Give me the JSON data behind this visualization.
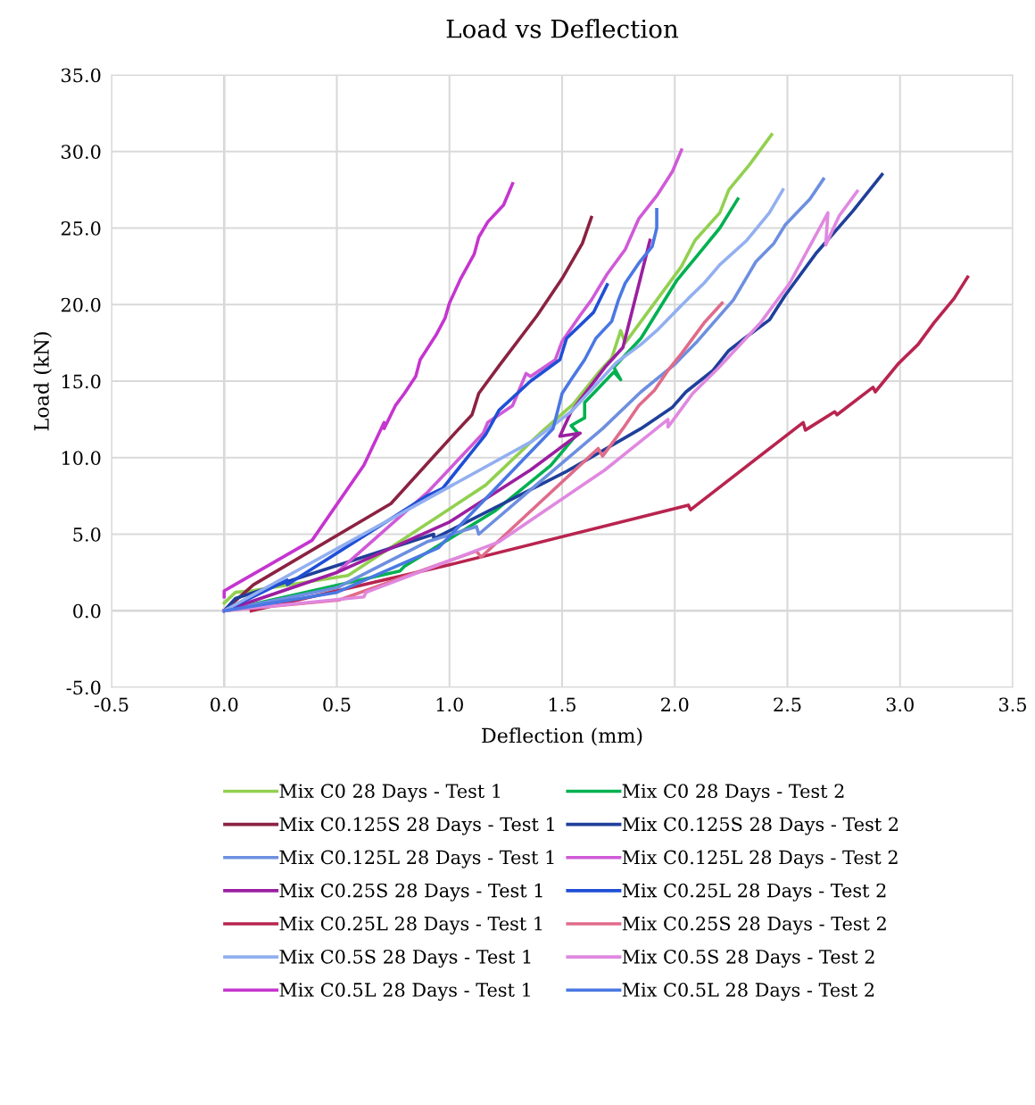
{
  "chart_data": {
    "type": "line",
    "title": "Load vs Deflection",
    "xlabel": "Deflection (mm)",
    "ylabel": "Load (kN)",
    "xlim": [
      -0.5,
      3.5
    ],
    "ylim": [
      -5,
      35
    ],
    "xticks": [
      {
        "value": -0.5,
        "label": "-0.5"
      },
      {
        "value": 0,
        "label": "0.0"
      },
      {
        "value": 0.5,
        "label": "0.5"
      },
      {
        "value": 1,
        "label": "1.0"
      },
      {
        "value": 1.5,
        "label": "1.5"
      },
      {
        "value": 2,
        "label": "2.0"
      },
      {
        "value": 2.5,
        "label": "2.5"
      },
      {
        "value": 3,
        "label": "3.0"
      },
      {
        "value": 3.5,
        "label": "3.5"
      }
    ],
    "yticks": [
      {
        "value": -5,
        "label": "-5.0"
      },
      {
        "value": 0,
        "label": "0.0"
      },
      {
        "value": 5,
        "label": "5.0"
      },
      {
        "value": 10,
        "label": "10.0"
      },
      {
        "value": 15,
        "label": "15.0"
      },
      {
        "value": 20,
        "label": "20.0"
      },
      {
        "value": 25,
        "label": "25.0"
      },
      {
        "value": 30,
        "label": "30.0"
      },
      {
        "value": 35,
        "label": "35.0"
      }
    ],
    "grid": true,
    "legend": "bottom",
    "marker": "none",
    "line_style": "solid",
    "series": [
      {
        "name": "Mix C0 28 Days - Test 1",
        "color": "#92d050",
        "x": [
          0,
          0.05,
          0.12,
          0.55,
          1.16,
          1.41,
          1.55,
          1.67,
          1.72,
          1.76,
          1.78,
          1.88,
          2.03,
          2.09,
          2.2,
          2.24,
          2.33,
          2.43
        ],
        "values": [
          0.5,
          1.2,
          1.3,
          2.3,
          8.2,
          11.7,
          13.5,
          15.7,
          16.5,
          18.3,
          17.5,
          19.5,
          22.5,
          24.2,
          26,
          27.5,
          29.1,
          31.1
        ]
      },
      {
        "name": "Mix C0 28 Days - Test 2",
        "color": "#00b050",
        "x": [
          0,
          0.78,
          0.8,
          1.2,
          1.45,
          1.57,
          1.54,
          1.6,
          1.6,
          1.73,
          1.76,
          1.73,
          1.85,
          2.01,
          2.1,
          2.2,
          2.28
        ],
        "values": [
          0,
          2.6,
          2.9,
          6.5,
          9.5,
          11.6,
          12.1,
          12.6,
          13.6,
          15.6,
          15.1,
          15.9,
          17.8,
          21.6,
          23.2,
          25,
          26.9
        ]
      },
      {
        "name": "Mix C0.125S 28 Days - Test 1",
        "color": "#8b2242",
        "x": [
          0,
          0.13,
          0.74,
          1.03,
          1.1,
          1.13,
          1.22,
          1.39,
          1.5,
          1.59,
          1.63
        ],
        "values": [
          0,
          1.7,
          7.0,
          11.7,
          12.8,
          14.2,
          16.0,
          19.3,
          21.7,
          24,
          25.7
        ]
      },
      {
        "name": "Mix C0.125S 28 Days - Test 2",
        "color": "#1f3f9a",
        "x": [
          0,
          0.05,
          0.93,
          0.93,
          1.52,
          1.85,
          1.92,
          1.99,
          2.05,
          2.17,
          2.24,
          2.31,
          2.42,
          2.49,
          2.63,
          2.79,
          2.92
        ],
        "values": [
          0,
          0.8,
          5.0,
          4.7,
          9.1,
          11.9,
          12.6,
          13.3,
          14.3,
          15.7,
          17,
          17.8,
          19.0,
          20.6,
          23.4,
          26.1,
          28.5
        ]
      },
      {
        "name": "Mix C0.125L 28 Days - Test 1",
        "color": "#6d8fe0",
        "x": [
          0,
          0.5,
          0.9,
          1.12,
          1.13,
          1.4,
          1.68,
          1.85,
          2.0,
          2.1,
          2.26,
          2.36,
          2.44,
          2.49,
          2.6,
          2.66
        ],
        "values": [
          0,
          1.5,
          4.5,
          5.5,
          5.0,
          8.4,
          11.9,
          14.3,
          16.1,
          17.6,
          20.3,
          22.8,
          24,
          25.2,
          26.9,
          28.2
        ]
      },
      {
        "name": "Mix C0.125L 28 Days - Test 2",
        "color": "#d05ad8",
        "x": [
          0,
          0.5,
          0.9,
          1.15,
          1.17,
          1.28,
          1.34,
          1.36,
          1.47,
          1.5,
          1.58,
          1.63,
          1.7,
          1.78,
          1.84,
          1.92,
          1.99,
          2.03
        ],
        "values": [
          0,
          2.5,
          7.7,
          11.6,
          12.3,
          13.4,
          15.5,
          15.3,
          16.4,
          17.6,
          19.3,
          20.3,
          22,
          23.6,
          25.6,
          27.1,
          28.7,
          30.1
        ]
      },
      {
        "name": "Mix C0.25S 28 Days - Test 1",
        "color": "#9b1fa0",
        "x": [
          0,
          0.5,
          1.0,
          1.36,
          1.58,
          1.49,
          1.54,
          1.69,
          1.77,
          1.89
        ],
        "values": [
          0,
          2.5,
          5.8,
          9.2,
          11.6,
          11.4,
          13.0,
          15.9,
          17.2,
          24.2
        ]
      },
      {
        "name": "Mix C0.25L 28 Days - Test 2",
        "color": "#1f4fd6",
        "x": [
          0,
          0.28,
          0.28,
          0.9,
          0.97,
          1.16,
          1.22,
          1.36,
          1.49,
          1.52,
          1.64,
          1.7
        ],
        "values": [
          0,
          2.0,
          1.7,
          7.5,
          8.0,
          11.5,
          13.1,
          15.0,
          16.4,
          17.8,
          19.5,
          21.3
        ]
      },
      {
        "name": "Mix C0.25L 28 Days - Test 1",
        "color": "#b8244f",
        "x": [
          0.12,
          1.0,
          2.06,
          2.07,
          2.57,
          2.58,
          2.71,
          2.72,
          2.88,
          2.89,
          2.99,
          3.08,
          3.15,
          3.24,
          3.3
        ],
        "values": [
          0,
          3.0,
          6.9,
          6.6,
          12.3,
          11.8,
          13.0,
          12.8,
          14.6,
          14.3,
          16.1,
          17.4,
          18.8,
          20.4,
          21.8
        ]
      },
      {
        "name": "Mix C0.25S 28 Days - Test 2",
        "color": "#e06b8a",
        "x": [
          0,
          0.51,
          1.12,
          1.14,
          1.66,
          1.68,
          1.77,
          1.84,
          1.91,
          1.97,
          2.03,
          2.13,
          2.21
        ],
        "values": [
          0,
          0.7,
          3.9,
          3.5,
          10.6,
          10.1,
          11.9,
          13.4,
          14.4,
          15.7,
          16.8,
          18.8,
          20.1
        ]
      },
      {
        "name": "Mix C0.5S 28 Days - Test 1",
        "color": "#92aff0",
        "x": [
          0,
          1.37,
          1.54,
          1.74,
          1.85,
          1.92,
          2.06,
          2.13,
          2.2,
          2.32,
          2.42,
          2.48
        ],
        "values": [
          0,
          11.1,
          13.0,
          16.2,
          17.4,
          18.3,
          20.4,
          21.4,
          22.6,
          24.2,
          26,
          27.5
        ]
      },
      {
        "name": "Mix C0.5S 28 Days - Test 2",
        "color": "#e088e0",
        "x": [
          0,
          0.62,
          0.63,
          1.22,
          1.69,
          1.97,
          1.97,
          2.08,
          2.19,
          2.38,
          2.51,
          2.68,
          2.67,
          2.73,
          2.81
        ],
        "values": [
          0,
          0.9,
          1.2,
          4.5,
          9.2,
          12.5,
          12.0,
          14.2,
          15.8,
          18.8,
          21.4,
          26.0,
          23.9,
          25.8,
          27.4
        ]
      },
      {
        "name": "Mix C0.5L 28 Days - Test 1",
        "color": "#c535cf",
        "x": [
          0,
          0,
          0.39,
          0.62,
          0.71,
          0.71,
          0.76,
          0.8,
          0.85,
          0.87,
          0.94,
          0.98,
          1.0,
          1.05,
          1.08,
          1.11,
          1.13,
          1.17,
          1.24,
          1.28
        ],
        "values": [
          0.9,
          1.3,
          4.6,
          9.5,
          12.3,
          11.9,
          13.4,
          14.2,
          15.3,
          16.4,
          18.0,
          19.1,
          20.1,
          21.7,
          22.5,
          23.3,
          24.4,
          25.4,
          26.5,
          27.9
        ]
      },
      {
        "name": "Mix C0.5L 28 Days - Test 2",
        "color": "#4a78e3",
        "x": [
          0,
          0.5,
          0.95,
          1.46,
          1.5,
          1.54,
          1.6,
          1.65,
          1.72,
          1.75,
          1.78,
          1.84,
          1.9,
          1.92,
          1.92
        ],
        "values": [
          0,
          1.2,
          4.1,
          11.9,
          14.2,
          15.1,
          16.4,
          17.8,
          18.9,
          20.3,
          21.4,
          22.7,
          23.8,
          25.0,
          26.2
        ]
      }
    ]
  }
}
